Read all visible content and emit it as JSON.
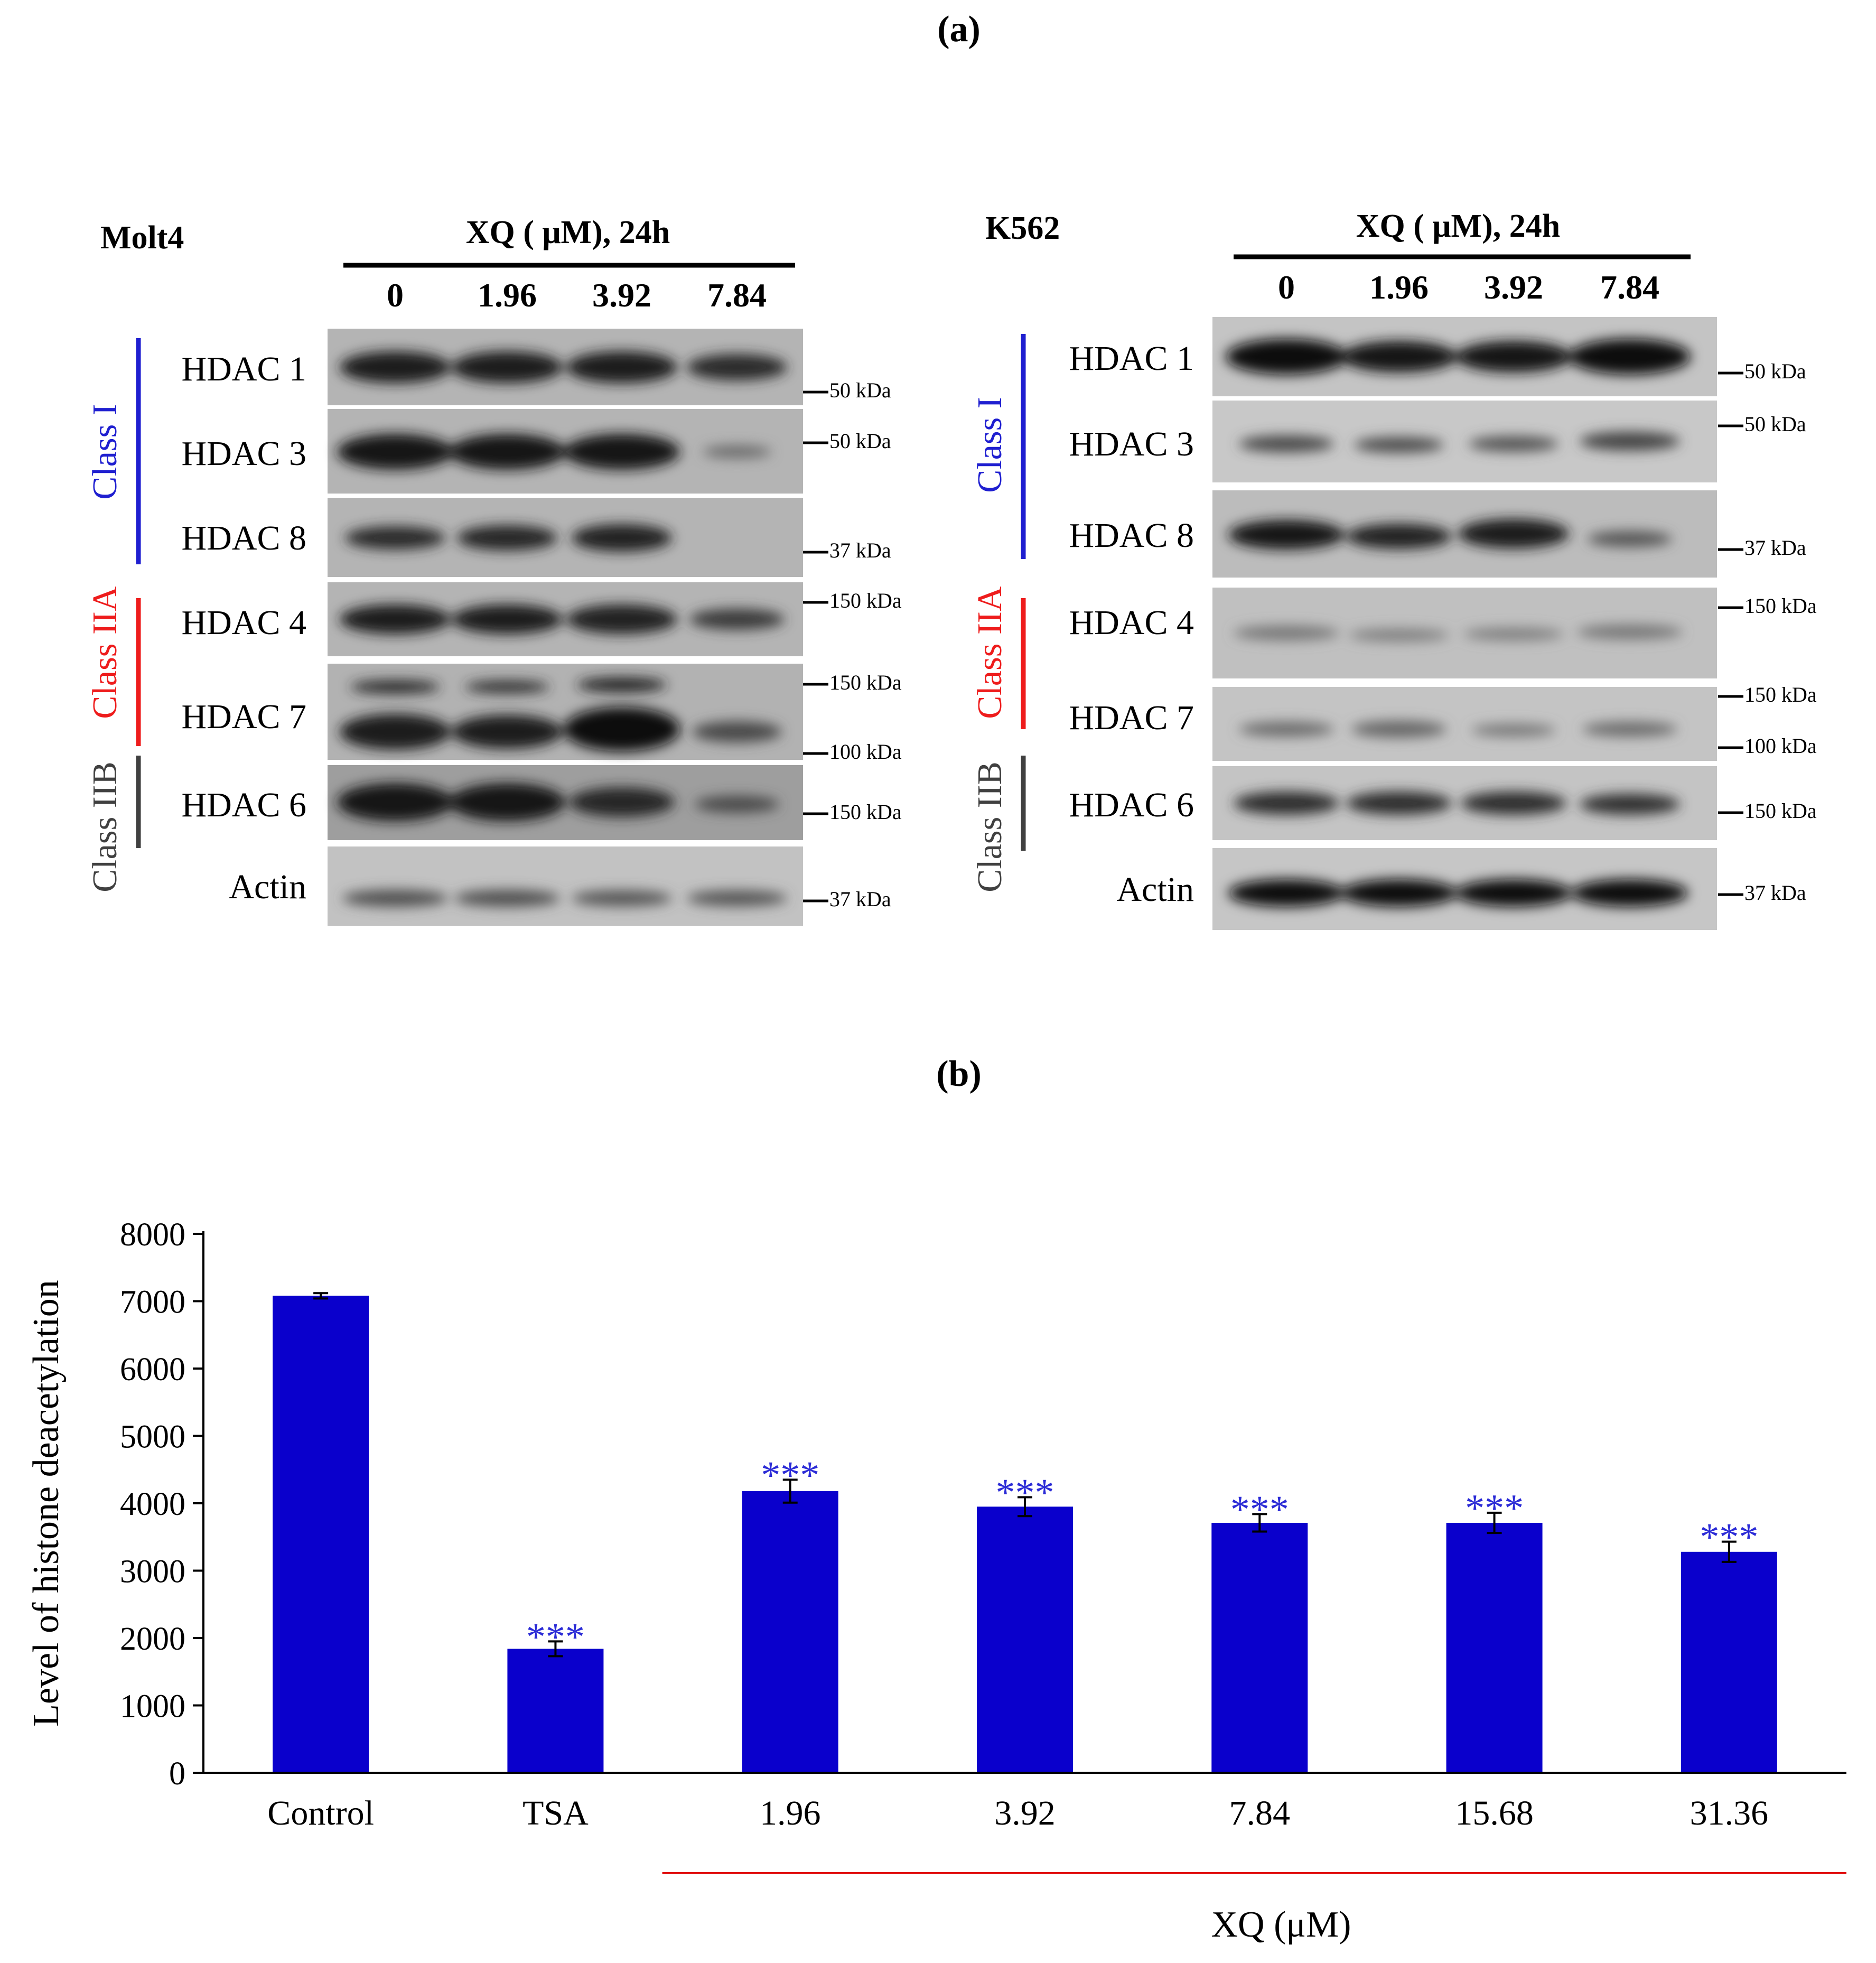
{
  "panel_a": {
    "label": "(a)",
    "left": {
      "cell_line": "Molt4",
      "treatment": "XQ ( μM), 24h",
      "doses": [
        "0",
        "1.96",
        "3.92",
        "7.84"
      ],
      "rows": [
        "HDAC 1",
        "HDAC 3",
        "HDAC 8",
        "HDAC 4",
        "HDAC 7",
        "HDAC 6",
        "Actin"
      ],
      "markers": [
        "50 kDa",
        "50 kDa",
        "37 kDa",
        "150 kDa",
        "150 kDa",
        "100 kDa",
        "150 kDa",
        "37 kDa"
      ],
      "classes": [
        "Class I",
        "Class IIA",
        "Class IIB"
      ]
    },
    "right": {
      "cell_line": "K562",
      "treatment": "XQ ( μM), 24h",
      "doses": [
        "0",
        "1.96",
        "3.92",
        "7.84"
      ],
      "rows": [
        "HDAC 1",
        "HDAC 3",
        "HDAC 8",
        "HDAC 4",
        "HDAC 7",
        "HDAC 6",
        "Actin"
      ],
      "markers": [
        "50 kDa",
        "50 kDa",
        "37 kDa",
        "150 kDa",
        "150 kDa",
        "100 kDa",
        "150 kDa",
        "37 kDa"
      ],
      "classes": [
        "Class I",
        "Class IIA",
        "Class IIB"
      ]
    },
    "colors": {
      "class_i": "#1f1fd0",
      "class_iia": "#ee1c1c",
      "class_iib": "#404040"
    }
  },
  "panel_b": {
    "label": "(b)"
  },
  "chart_data": {
    "type": "bar",
    "categories": [
      "Control",
      "TSA",
      "1.96",
      "3.92",
      "7.84",
      "15.68",
      "31.36"
    ],
    "values": [
      7080,
      1840,
      4180,
      3950,
      3710,
      3710,
      3280
    ],
    "errors": [
      40,
      110,
      170,
      140,
      130,
      150,
      150
    ],
    "annotations": [
      "",
      "***",
      "***",
      "***",
      "***",
      "***",
      "***"
    ],
    "ylabel": "Level of histone deacetylation",
    "xlabel": "XQ (μM)",
    "ylim": [
      0,
      8000
    ],
    "yticks": [
      0,
      1000,
      2000,
      3000,
      4000,
      5000,
      6000,
      7000,
      8000
    ],
    "grid": false,
    "bar_color": "#0a00cc",
    "annotation_color": "#2b2bd6",
    "xq_group_line_color": "#e01010"
  }
}
